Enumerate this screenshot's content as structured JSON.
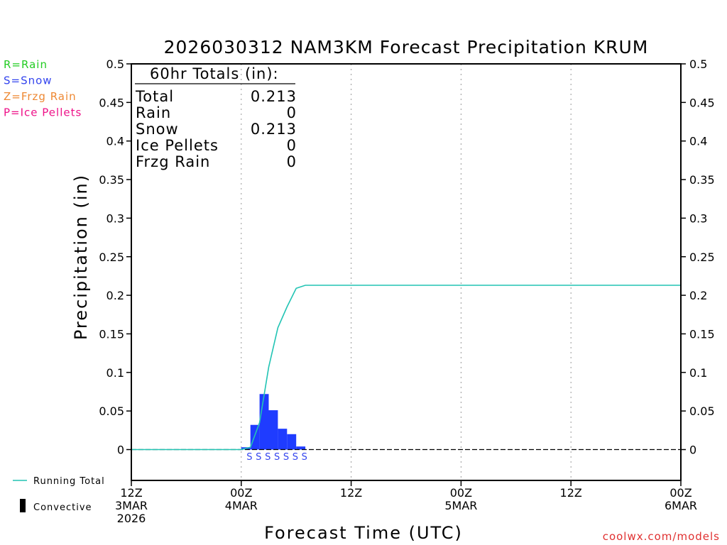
{
  "title": "2026030312 NAM3KM Forecast Precipitation KRUM",
  "ylabel": "Precipitation (in)",
  "xlabel": "Forecast Time (UTC)",
  "watermark": "coolwx.com/models",
  "ptype_legend": [
    {
      "text": "R=Rain",
      "color": "#22cc22"
    },
    {
      "text": "S=Snow",
      "color": "#3344ee"
    },
    {
      "text": "Z=Frzg Rain",
      "color": "#ee8833"
    },
    {
      "text": "P=Ice Pellets",
      "color": "#ee1188"
    }
  ],
  "series_legend": {
    "running_total": "Running Total",
    "convective": "Convective"
  },
  "totals_box": {
    "title": "60hr Totals (in):",
    "rows": [
      {
        "label": "Total",
        "value": "0.213"
      },
      {
        "label": "Rain",
        "value": "0"
      },
      {
        "label": "Snow",
        "value": "0.213"
      },
      {
        "label": "Ice Pellets",
        "value": "0"
      },
      {
        "label": "Frzg Rain",
        "value": "0"
      }
    ]
  },
  "chart_data": {
    "type": "bar",
    "x_unit": "hours from 12Z 3MAR 2026",
    "xlim": [
      0,
      60
    ],
    "ylim": [
      -0.04,
      0.5
    ],
    "yticks": [
      "0.5",
      "0.45",
      "0.4",
      "0.35",
      "0.3",
      "0.25",
      "0.2",
      "0.15",
      "0.1",
      "0.05",
      "0"
    ],
    "ytick_values": [
      0.5,
      0.45,
      0.4,
      0.35,
      0.3,
      0.25,
      0.2,
      0.15,
      0.1,
      0.05,
      0
    ],
    "xticks": [
      {
        "hour": 0,
        "lines": [
          "12Z",
          "3MAR",
          "2026"
        ]
      },
      {
        "hour": 12,
        "lines": [
          "00Z",
          "4MAR"
        ]
      },
      {
        "hour": 24,
        "lines": [
          "12Z"
        ]
      },
      {
        "hour": 36,
        "lines": [
          "00Z",
          "5MAR"
        ]
      },
      {
        "hour": 48,
        "lines": [
          "12Z"
        ]
      },
      {
        "hour": 60,
        "lines": [
          "00Z",
          "6MAR"
        ]
      }
    ],
    "grid": "vertical dotted",
    "bar_color": "#1f3cff",
    "line_color": "#22c4b4",
    "bars": [
      {
        "start": 12.0,
        "end": 13.0,
        "value": 0.003
      },
      {
        "start": 13.0,
        "end": 14.0,
        "value": 0.032
      },
      {
        "start": 14.0,
        "end": 15.0,
        "value": 0.072
      },
      {
        "start": 15.0,
        "end": 16.0,
        "value": 0.051
      },
      {
        "start": 16.0,
        "end": 17.0,
        "value": 0.027
      },
      {
        "start": 17.0,
        "end": 18.0,
        "value": 0.02
      },
      {
        "start": 18.0,
        "end": 19.0,
        "value": 0.004
      }
    ],
    "ptype_markers": [
      {
        "hour": 12.9,
        "text": "S"
      },
      {
        "hour": 13.9,
        "text": "S"
      },
      {
        "hour": 14.9,
        "text": "S"
      },
      {
        "hour": 15.9,
        "text": "S"
      },
      {
        "hour": 16.9,
        "text": "S"
      },
      {
        "hour": 17.9,
        "text": "S"
      },
      {
        "hour": 18.9,
        "text": "S"
      }
    ],
    "running_total": {
      "x": [
        0,
        11,
        12,
        13,
        14,
        15,
        16,
        17,
        18,
        19,
        20,
        30,
        40,
        50,
        60
      ],
      "y": [
        0,
        0,
        0,
        0.003,
        0.035,
        0.107,
        0.158,
        0.185,
        0.209,
        0.213,
        0.213,
        0.213,
        0.213,
        0.213,
        0.213
      ]
    }
  }
}
